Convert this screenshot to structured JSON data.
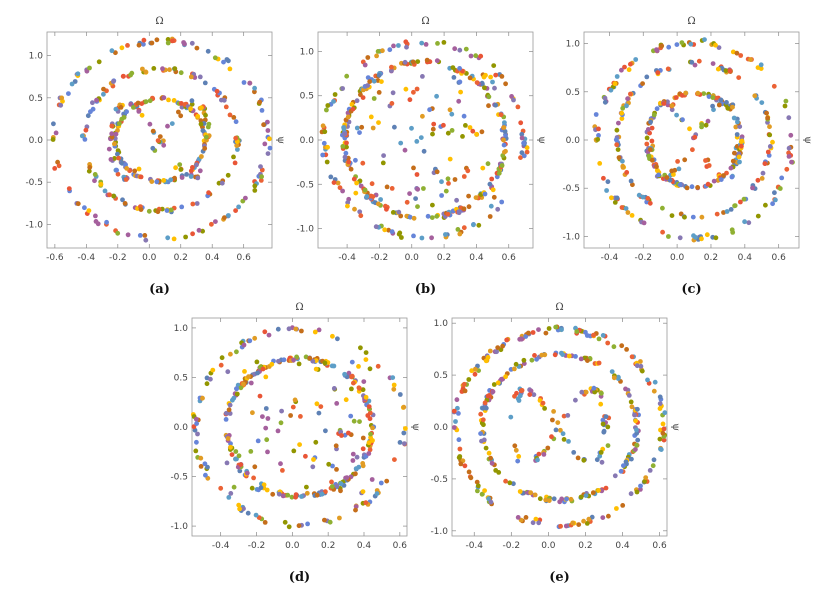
{
  "colors": [
    "#5e81b5",
    "#e19c24",
    "#8fb032",
    "#eb6235",
    "#8778b3",
    "#c56e1a",
    "#5d9ec7",
    "#ffbf00",
    "#a5609d",
    "#929600",
    "#e95536",
    "#6685d9"
  ],
  "chart_data": [
    {
      "caption": "(a)",
      "type": "scatter",
      "xlabel": "",
      "ylabel": "",
      "top_label": "Ω",
      "right_label": "ψ",
      "xlim": [
        -0.65,
        0.78
      ],
      "ylim": [
        -1.28,
        1.28
      ],
      "xticks": [
        -0.6,
        -0.4,
        -0.2,
        0.0,
        0.2,
        0.4,
        0.6
      ],
      "xtick_labels": [
        "-0.6",
        "-0.4",
        "-0.2",
        "0.0",
        "0.2",
        "0.4",
        "0.6"
      ],
      "yticks": [
        -1.0,
        -0.5,
        0.0,
        0.5,
        1.0
      ],
      "ytick_labels": [
        "-1.0",
        "-0.5",
        "0.0",
        "0.5",
        "1.0"
      ],
      "pattern": {
        "cx": 0.07,
        "cy": 0.0,
        "rx": 0.68,
        "ry": 1.17,
        "rings": [
          1.0,
          0.72,
          0.42
        ],
        "lobes": true,
        "n": 420
      }
    },
    {
      "caption": "(b)",
      "type": "scatter",
      "xlabel": "",
      "ylabel": "",
      "top_label": "Ω",
      "right_label": "ψ",
      "xlim": [
        -0.58,
        0.75
      ],
      "ylim": [
        -1.22,
        1.22
      ],
      "xticks": [
        -0.4,
        -0.2,
        0.0,
        0.2,
        0.4,
        0.6
      ],
      "xtick_labels": [
        "-0.4",
        "-0.2",
        "0.0",
        "0.2",
        "0.4",
        "0.6"
      ],
      "yticks": [
        -1.0,
        -0.5,
        0.0,
        0.5,
        1.0
      ],
      "ytick_labels": [
        "-1.0",
        "-0.5",
        "0.0",
        "0.5",
        "1.0"
      ],
      "pattern": {
        "cx": 0.08,
        "cy": 0.0,
        "rx": 0.62,
        "ry": 1.1,
        "rings": [
          1.0,
          0.8
        ],
        "lobes": false,
        "n": 420
      }
    },
    {
      "caption": "(c)",
      "type": "scatter",
      "xlabel": "",
      "ylabel": "",
      "top_label": "Ω",
      "right_label": "ψ",
      "xlim": [
        -0.55,
        0.72
      ],
      "ylim": [
        -1.12,
        1.12
      ],
      "xticks": [
        -0.4,
        -0.2,
        0.0,
        0.2,
        0.4,
        0.6
      ],
      "xtick_labels": [
        "-0.4",
        "-0.2",
        "0.0",
        "0.2",
        "0.4",
        "0.6"
      ],
      "yticks": [
        -1.0,
        -0.5,
        0.0,
        0.5,
        1.0
      ],
      "ytick_labels": [
        "-1.0",
        "-0.5",
        "0.0",
        "0.5",
        "1.0"
      ],
      "pattern": {
        "cx": 0.1,
        "cy": 0.0,
        "rx": 0.58,
        "ry": 1.02,
        "rings": [
          1.0,
          0.78,
          0.48
        ],
        "lobes": true,
        "n": 420
      }
    },
    {
      "caption": "(d)",
      "type": "scatter",
      "xlabel": "",
      "ylabel": "",
      "top_label": "Ω",
      "right_label": "ψ",
      "xlim": [
        -0.56,
        0.64
      ],
      "ylim": [
        -1.1,
        1.1
      ],
      "xticks": [
        -0.4,
        -0.2,
        0.0,
        0.2,
        0.4,
        0.6
      ],
      "xtick_labels": [
        "-0.4",
        "-0.2",
        "0.0",
        "0.2",
        "0.4",
        "0.6"
      ],
      "yticks": [
        -1.0,
        -0.5,
        0.0,
        0.5,
        1.0
      ],
      "ytick_labels": [
        "-1.0",
        "-0.5",
        "0.0",
        "0.5",
        "1.0"
      ],
      "pattern": {
        "cx": 0.04,
        "cy": 0.0,
        "rx": 0.58,
        "ry": 0.99,
        "rings": [
          1.0,
          0.7
        ],
        "lobes": false,
        "n": 400
      }
    },
    {
      "caption": "(e)",
      "type": "scatter",
      "xlabel": "",
      "ylabel": "",
      "top_label": "Ω",
      "right_label": "ψ",
      "xlim": [
        -0.52,
        0.64
      ],
      "ylim": [
        -1.05,
        1.05
      ],
      "xticks": [
        -0.4,
        -0.2,
        0.0,
        0.2,
        0.4,
        0.6
      ],
      "xtick_labels": [
        "-0.4",
        "-0.2",
        "0.0",
        "0.2",
        "0.4",
        "0.6"
      ],
      "yticks": [
        -1.0,
        -0.5,
        0.0,
        0.5,
        1.0
      ],
      "ytick_labels": [
        "-1.0",
        "-0.5",
        "0.0",
        "0.5",
        "1.0"
      ],
      "pattern": {
        "cx": 0.06,
        "cy": 0.0,
        "rx": 0.56,
        "ry": 0.94,
        "rings": [
          1.0,
          0.75
        ],
        "lobes": true,
        "n": 420
      }
    }
  ]
}
